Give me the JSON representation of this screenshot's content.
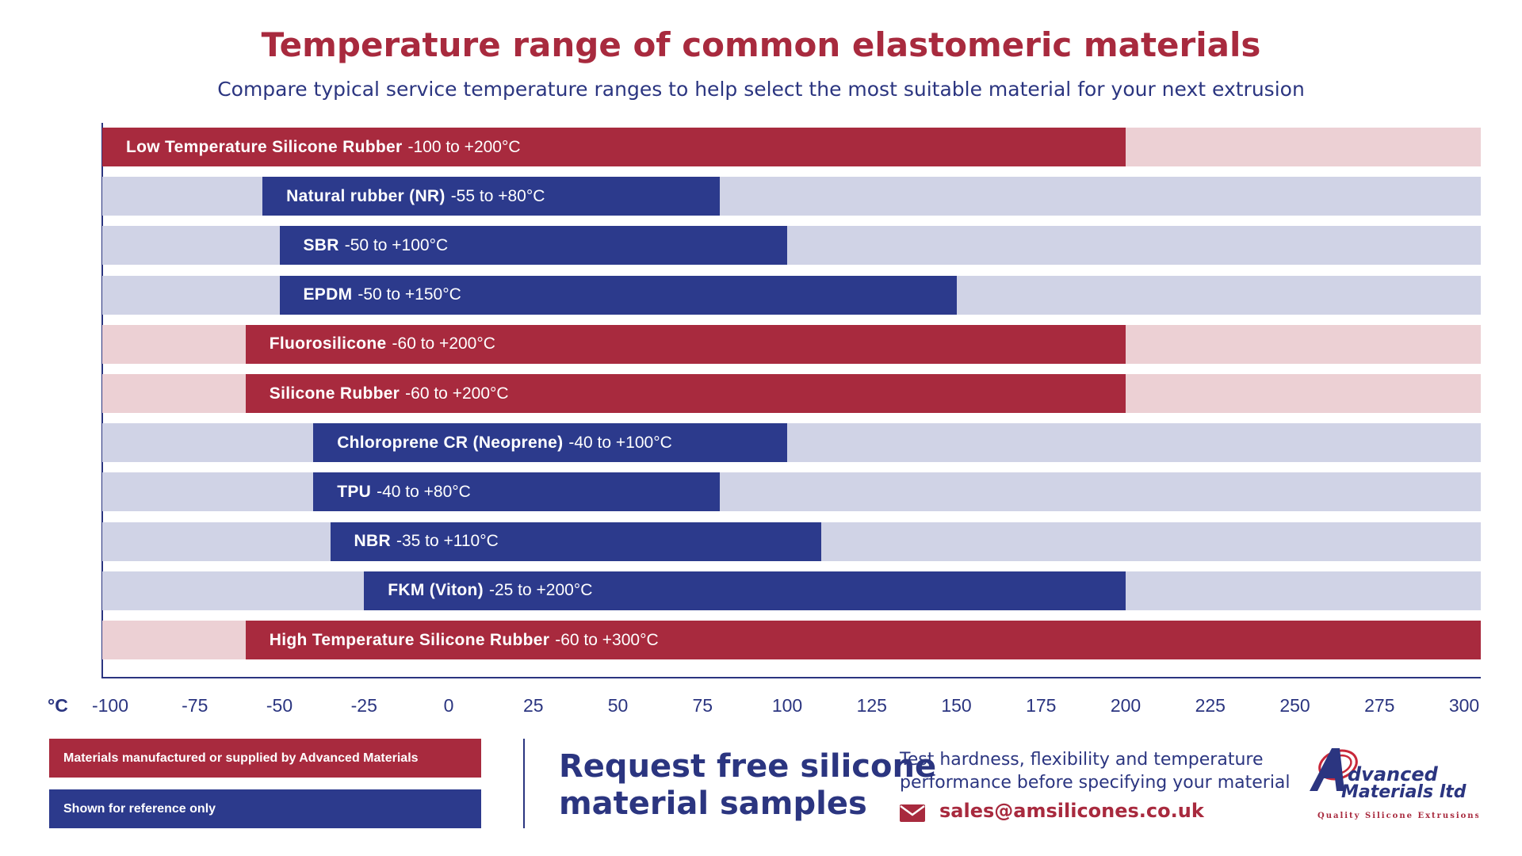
{
  "title": "Temperature range of common elastomeric materials",
  "subtitle": "Compare typical service temperature ranges to help select the most suitable material for your next extrusion",
  "colors": {
    "manufactured": "#a82a3e",
    "manufactured_track": "#ecd0d4",
    "reference": "#2c3a8c",
    "reference_track": "#d0d3e6",
    "text": "#2b3580"
  },
  "chart_data": {
    "type": "bar",
    "orientation": "horizontal-range",
    "xlabel": "°C",
    "xlim": [
      -100,
      300
    ],
    "xticks": [
      "-100",
      "-75",
      "-50",
      "-25",
      "0",
      "25",
      "50",
      "75",
      "100",
      "125",
      "150",
      "175",
      "200",
      "225",
      "250",
      "275",
      "300"
    ],
    "series": [
      {
        "name": "Low Temperature Silicone Rubber",
        "range_label": "-100 to +200°C",
        "min": -100,
        "max": 200,
        "group": "manufactured"
      },
      {
        "name": "Natural rubber (NR)",
        "range_label": "-55 to +80°C",
        "min": -55,
        "max": 80,
        "group": "reference"
      },
      {
        "name": "SBR",
        "range_label": "-50 to +100°C",
        "min": -50,
        "max": 100,
        "group": "reference"
      },
      {
        "name": "EPDM",
        "range_label": "-50 to +150°C",
        "min": -50,
        "max": 150,
        "group": "reference"
      },
      {
        "name": "Fluorosilicone",
        "range_label": "-60 to +200°C",
        "min": -60,
        "max": 200,
        "group": "manufactured"
      },
      {
        "name": "Silicone Rubber",
        "range_label": "-60 to +200°C",
        "min": -60,
        "max": 200,
        "group": "manufactured"
      },
      {
        "name": "Chloroprene CR (Neoprene)",
        "range_label": "-40 to +100°C",
        "min": -40,
        "max": 100,
        "group": "reference"
      },
      {
        "name": "TPU",
        "range_label": "-40 to +80°C",
        "min": -40,
        "max": 80,
        "group": "reference"
      },
      {
        "name": "NBR",
        "range_label": "-35 to +110°C",
        "min": -35,
        "max": 110,
        "group": "reference"
      },
      {
        "name": "FKM (Viton)",
        "range_label": "-25 to +200°C",
        "min": -25,
        "max": 200,
        "group": "reference"
      },
      {
        "name": "High Temperature Silicone Rubber",
        "range_label": "-60 to +300°C",
        "min": -60,
        "max": 300,
        "group": "manufactured"
      }
    ]
  },
  "legend": {
    "manufactured": "Materials manufactured or supplied by Advanced Materials",
    "reference": "Shown for reference only"
  },
  "cta": {
    "line1": "Request free silicone",
    "line2": "material samples",
    "info1": "Test hardness, flexibility and temperature",
    "info2": "performance before specifying your material",
    "email": "sales@amsilicones.co.uk",
    "email_icon": "envelope-icon"
  },
  "logo": {
    "line1": "Advanced",
    "line2": "Materials ltd",
    "tagline": "Quality Silicone Extrusions"
  }
}
